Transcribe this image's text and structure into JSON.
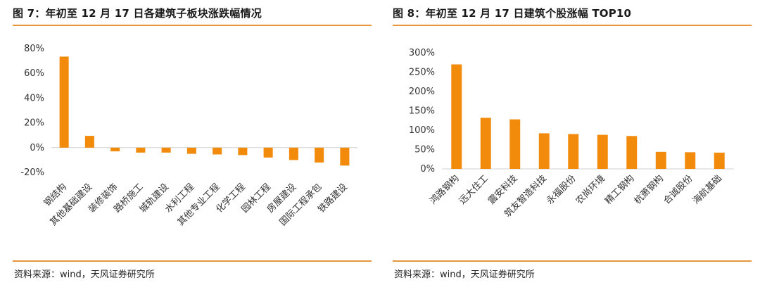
{
  "colors": {
    "bar": "#f28b0c",
    "rule": "#e8963d",
    "axis": "#d0d0d0"
  },
  "left": {
    "title": "图 7：年初至 12 月 17 日各建筑子板块涨跌幅情况",
    "source": "资料来源：wind，天风证券研究所",
    "chart_data": {
      "type": "bar",
      "categories": [
        "钢结构",
        "其他基础建设",
        "装修装饰",
        "路桥施工",
        "城轨建设",
        "水利工程",
        "其他专业工程",
        "化学工程",
        "园林工程",
        "房屋建设",
        "国际工程承包",
        "铁路建设"
      ],
      "values": [
        0.735,
        0.095,
        -0.03,
        -0.04,
        -0.04,
        -0.05,
        -0.055,
        -0.06,
        -0.08,
        -0.1,
        -0.12,
        -0.145
      ],
      "ylim": [
        -0.2,
        0.8
      ],
      "yticks": [
        "80%",
        "60%",
        "40%",
        "20%",
        "0%",
        "-20%"
      ],
      "ytick_values": [
        0.8,
        0.6,
        0.4,
        0.2,
        0.0,
        -0.2
      ]
    }
  },
  "right": {
    "title": "图 8：年初至 12 月 17 日建筑个股涨幅 TOP10",
    "source": "资料来源：wind，天风证券研究所",
    "chart_data": {
      "type": "bar",
      "categories": [
        "鸿路钢构",
        "远大住工",
        "震安科技",
        "筑友智造科技",
        "永福股份",
        "农尚环境",
        "精工钢构",
        "杭萧钢构",
        "合诚股份",
        "海航基础"
      ],
      "values": [
        2.7,
        1.32,
        1.28,
        0.92,
        0.9,
        0.88,
        0.85,
        0.44,
        0.43,
        0.42
      ],
      "ylim": [
        0,
        3.0
      ],
      "yticks": [
        "300%",
        "250%",
        "200%",
        "150%",
        "100%",
        "50%",
        "0%"
      ],
      "ytick_values": [
        3.0,
        2.5,
        2.0,
        1.5,
        1.0,
        0.5,
        0.0
      ]
    }
  }
}
